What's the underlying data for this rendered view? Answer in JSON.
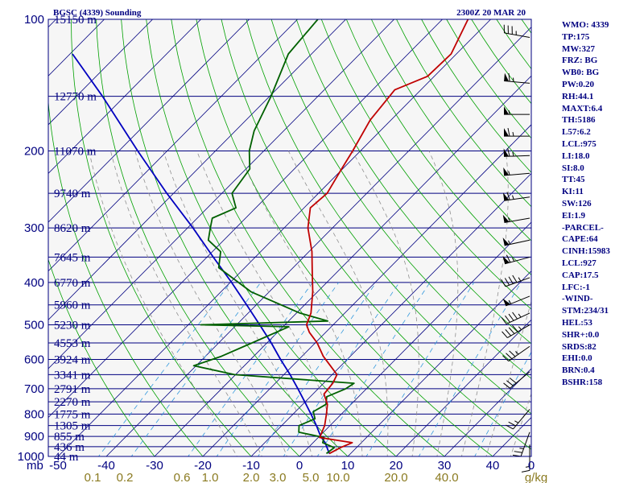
{
  "header": {
    "title": "BGSC (4339) Sounding",
    "time": "2300Z 20 MAR 20"
  },
  "chart_data": {
    "type": "line",
    "title": "BGSC (4339) Sounding",
    "pressure_levels": [
      {
        "p": 100,
        "label": "100",
        "hgt": "15150 m"
      },
      {
        "p": 150,
        "label": "",
        "hgt": "12770 m"
      },
      {
        "p": 200,
        "label": "200",
        "hgt": "11070 m"
      },
      {
        "p": 250,
        "label": "",
        "hgt": "9740 m"
      },
      {
        "p": 300,
        "label": "300",
        "hgt": "8620 m"
      },
      {
        "p": 350,
        "label": "",
        "hgt": "7645 m"
      },
      {
        "p": 400,
        "label": "400",
        "hgt": "6770 m"
      },
      {
        "p": 450,
        "label": "",
        "hgt": "5960 m"
      },
      {
        "p": 500,
        "label": "500",
        "hgt": "5230 m"
      },
      {
        "p": 550,
        "label": "",
        "hgt": "4553 m"
      },
      {
        "p": 600,
        "label": "600",
        "hgt": "3924 m"
      },
      {
        "p": 650,
        "label": "",
        "hgt": "3341 m"
      },
      {
        "p": 700,
        "label": "700",
        "hgt": "2791 m"
      },
      {
        "p": 750,
        "label": "",
        "hgt": "2270 m"
      },
      {
        "p": 800,
        "label": "800",
        "hgt": "1775 m"
      },
      {
        "p": 850,
        "label": "",
        "hgt": "1305 m"
      },
      {
        "p": 900,
        "label": "900",
        "hgt": "855 m"
      },
      {
        "p": 950,
        "label": "",
        "hgt": "436 m"
      },
      {
        "p": 1000,
        "label": "1000",
        "hgt": "44 m"
      }
    ],
    "temp_ticks": [
      "-50",
      "-40",
      "-30",
      "-20",
      "-10",
      "0",
      "10",
      "20",
      "30",
      "40",
      "0"
    ],
    "mixing_ratio_labels": [
      "0.1",
      "0.2",
      "0.6",
      "1.0",
      "2.0",
      "3.0",
      "5.0",
      "10.0",
      "20.0",
      "40.0",
      "g/kg"
    ],
    "pressure_unit": "mb",
    "yrange_mb": [
      1000,
      100
    ],
    "temperature": [
      {
        "p": 985,
        "t": 5.6
      },
      {
        "p": 955,
        "t": 6.7
      },
      {
        "p": 930,
        "t": 8.1
      },
      {
        "p": 905,
        "t": 0.3
      },
      {
        "p": 850,
        "t": -1.1
      },
      {
        "p": 800,
        "t": -3.1
      },
      {
        "p": 760,
        "t": -4.9
      },
      {
        "p": 720,
        "t": -7.7
      },
      {
        "p": 680,
        "t": -8.1
      },
      {
        "p": 650,
        "t": -9.0
      },
      {
        "p": 620,
        "t": -12.2
      },
      {
        "p": 590,
        "t": -15.6
      },
      {
        "p": 550,
        "t": -19.6
      },
      {
        "p": 520,
        "t": -23.4
      },
      {
        "p": 500,
        "t": -25.5
      },
      {
        "p": 470,
        "t": -27.0
      },
      {
        "p": 420,
        "t": -31.0
      },
      {
        "p": 380,
        "t": -35.0
      },
      {
        "p": 340,
        "t": -39.4
      },
      {
        "p": 300,
        "t": -45.1
      },
      {
        "p": 270,
        "t": -48.7
      },
      {
        "p": 250,
        "t": -48.2
      },
      {
        "p": 220,
        "t": -50.2
      },
      {
        "p": 200,
        "t": -51.6
      },
      {
        "p": 170,
        "t": -54.3
      },
      {
        "p": 145,
        "t": -55.4
      },
      {
        "p": 135,
        "t": -51.4
      },
      {
        "p": 120,
        "t": -51.1
      },
      {
        "p": 100,
        "t": -54.7
      }
    ],
    "dewpoint": [
      {
        "p": 985,
        "t": 5.0
      },
      {
        "p": 955,
        "t": 5.4
      },
      {
        "p": 930,
        "t": 2.0
      },
      {
        "p": 905,
        "t": 1.2
      },
      {
        "p": 880,
        "t": -5.1
      },
      {
        "p": 850,
        "t": -6.4
      },
      {
        "p": 820,
        "t": -4.5
      },
      {
        "p": 790,
        "t": -6.3
      },
      {
        "p": 760,
        "t": -5.2
      },
      {
        "p": 730,
        "t": -6.6
      },
      {
        "p": 700,
        "t": -4.3
      },
      {
        "p": 680,
        "t": -3.7
      },
      {
        "p": 650,
        "t": -30.2
      },
      {
        "p": 620,
        "t": -40.5
      },
      {
        "p": 590,
        "t": -36.7
      },
      {
        "p": 550,
        "t": -33.1
      },
      {
        "p": 505,
        "t": -28.8
      },
      {
        "p": 500,
        "t": -47.4
      },
      {
        "p": 490,
        "t": -21.9
      },
      {
        "p": 470,
        "t": -29.3
      },
      {
        "p": 420,
        "t": -43.8
      },
      {
        "p": 370,
        "t": -55.4
      },
      {
        "p": 340,
        "t": -58.3
      },
      {
        "p": 320,
        "t": -63.2
      },
      {
        "p": 300,
        "t": -65.3
      },
      {
        "p": 285,
        "t": -66.9
      },
      {
        "p": 270,
        "t": -64.1
      },
      {
        "p": 250,
        "t": -67.9
      },
      {
        "p": 220,
        "t": -69.2
      },
      {
        "p": 200,
        "t": -73.0
      },
      {
        "p": 180,
        "t": -76.1
      },
      {
        "p": 150,
        "t": -79.7
      },
      {
        "p": 120,
        "t": -84.8
      },
      {
        "p": 100,
        "t": -85.8
      }
    ],
    "parcel": [
      {
        "p": 985,
        "t": 5.6
      },
      {
        "p": 930,
        "t": 2.5
      },
      {
        "p": 900,
        "t": 0.3
      },
      {
        "p": 850,
        "t": -2.8
      },
      {
        "p": 800,
        "t": -6.3
      },
      {
        "p": 750,
        "t": -10.1
      },
      {
        "p": 700,
        "t": -14.2
      },
      {
        "p": 650,
        "t": -18.7
      },
      {
        "p": 600,
        "t": -23.8
      },
      {
        "p": 550,
        "t": -29.1
      },
      {
        "p": 500,
        "t": -35.2
      },
      {
        "p": 450,
        "t": -42.0
      },
      {
        "p": 400,
        "t": -49.7
      },
      {
        "p": 350,
        "t": -58.7
      },
      {
        "p": 300,
        "t": -68.9
      },
      {
        "p": 250,
        "t": -81.4
      },
      {
        "p": 200,
        "t": -96.1
      },
      {
        "p": 150,
        "t": -114.6
      },
      {
        "p": 120,
        "t": -129.5
      }
    ],
    "winds": [
      {
        "p": 110,
        "dir": 280,
        "kt": 35
      },
      {
        "p": 140,
        "dir": 275,
        "kt": 65
      },
      {
        "p": 165,
        "dir": 270,
        "kt": 55
      },
      {
        "p": 185,
        "dir": 270,
        "kt": 65
      },
      {
        "p": 205,
        "dir": 268,
        "kt": 65
      },
      {
        "p": 225,
        "dir": 265,
        "kt": 55
      },
      {
        "p": 255,
        "dir": 262,
        "kt": 65
      },
      {
        "p": 285,
        "dir": 260,
        "kt": 55
      },
      {
        "p": 320,
        "dir": 258,
        "kt": 55
      },
      {
        "p": 350,
        "dir": 255,
        "kt": 65
      },
      {
        "p": 390,
        "dir": 250,
        "kt": 45
      },
      {
        "p": 430,
        "dir": 248,
        "kt": 55
      },
      {
        "p": 470,
        "dir": 245,
        "kt": 45
      },
      {
        "p": 500,
        "dir": 240,
        "kt": 45
      },
      {
        "p": 560,
        "dir": 235,
        "kt": 35
      },
      {
        "p": 640,
        "dir": 230,
        "kt": 30
      },
      {
        "p": 780,
        "dir": 220,
        "kt": 25
      },
      {
        "p": 880,
        "dir": 200,
        "kt": 25
      },
      {
        "p": 940,
        "dir": 180,
        "kt": 15
      }
    ],
    "colors": {
      "temperature": "#c00000",
      "dewpoint": "#006000",
      "parcel": "#0000c0",
      "isobar": "#000080",
      "isotherm": "#000080",
      "dry_adiabat": "#00a000",
      "moist_adiabat": "#909090",
      "mixing_ratio": "#3399dd",
      "background": "#f6f6f6"
    }
  },
  "stats": [
    "WMO: 4339",
    "TP:175",
    "MW:327",
    "FRZ: BG",
    "WB0: BG",
    "PW:0.20",
    "RH:44.1",
    "MAXT:6.4",
    "TH:5186",
    "L57:6.2",
    "LCL:975",
    "LI:18.0",
    "SI:8.0",
    "TT:45",
    "KI:11",
    "SW:126",
    "EI:1.9",
    "-PARCEL-",
    "CAPE:64",
    "CINH:15983",
    "LCL:927",
    "CAP:17.5",
    "LFC:-1",
    "-WIND-",
    "STM:234/31",
    "HEL:53",
    "SHR+:0.0",
    "SRDS:82",
    "EHI:0.0",
    "BRN:0.4",
    "BSHR:158"
  ]
}
